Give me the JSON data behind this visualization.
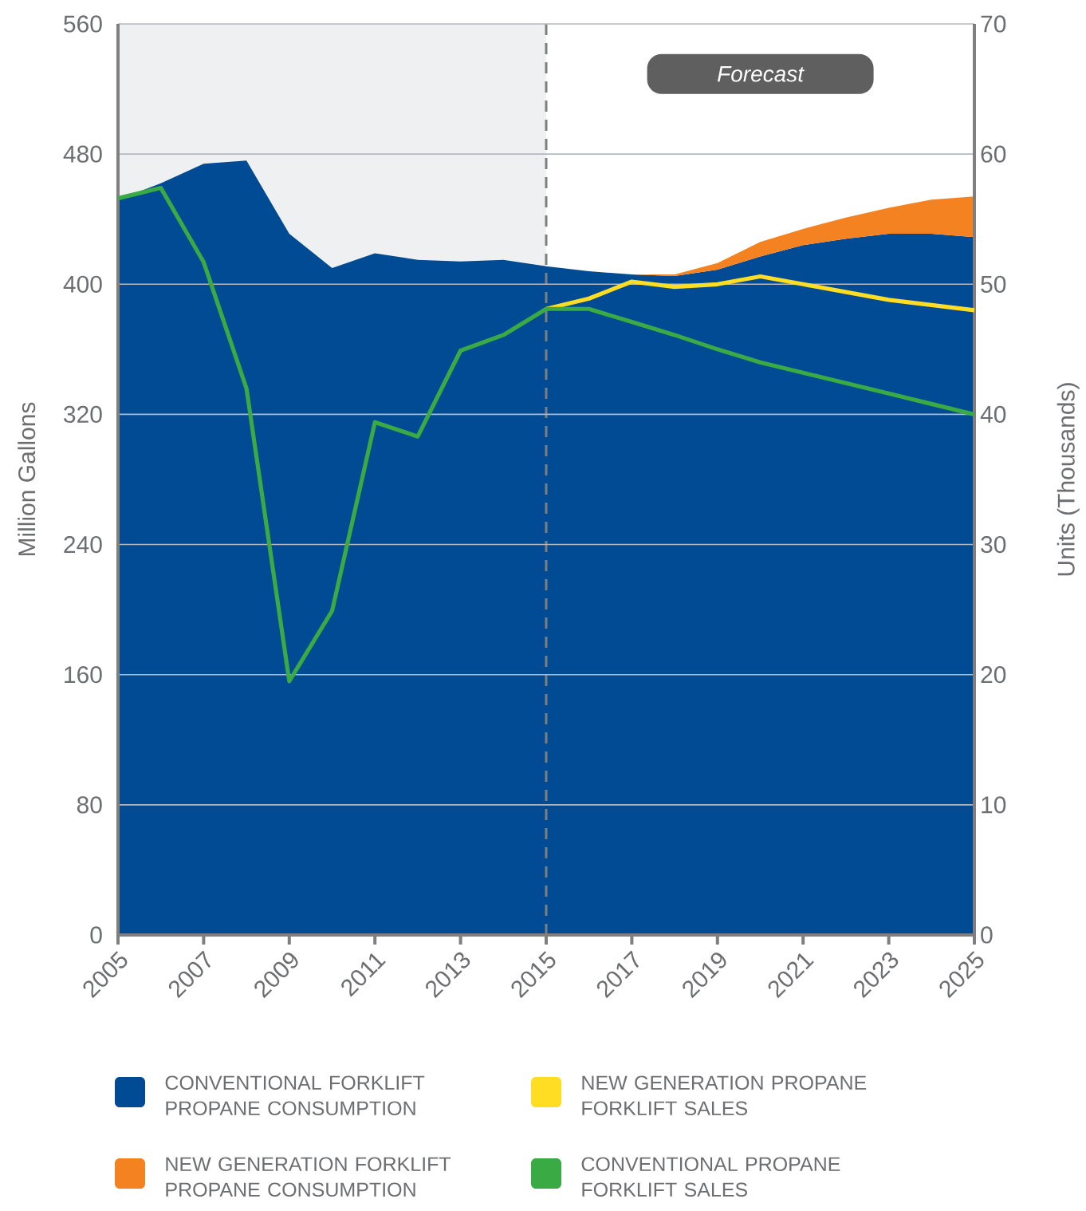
{
  "chart_data": {
    "type": "area",
    "stacked": true,
    "xlabel": null,
    "ylabel": "Million Gallons",
    "y2label": "Units (Thousands)",
    "x": [
      2005,
      2006,
      2007,
      2008,
      2009,
      2010,
      2011,
      2012,
      2013,
      2014,
      2015,
      2016,
      2017,
      2018,
      2019,
      2020,
      2021,
      2022,
      2023,
      2024,
      2025
    ],
    "series": [
      {
        "name": "CONVENTIONAL FORKLIFT PROPANE CONSUMPTION",
        "color": "#004b93",
        "values": [
          452,
          462,
          474,
          476,
          431,
          410,
          419,
          415,
          414,
          415,
          411,
          408,
          406,
          405,
          409,
          417,
          424,
          428,
          431,
          431,
          429
        ]
      },
      {
        "name": "NEW GENERATION FORKLIFT PROPANE CONSUMPTION",
        "color": "#f58220",
        "values": [
          null,
          null,
          null,
          null,
          null,
          null,
          null,
          null,
          null,
          null,
          null,
          null,
          0,
          1,
          4,
          9,
          10,
          13,
          16,
          21,
          25
        ]
      },
      {
        "name": "NEW GENERATION PROPANE FORKLIFT SALES",
        "type": "line",
        "axis": "y2",
        "color": "#ffdd22",
        "values": [
          null,
          null,
          null,
          null,
          null,
          null,
          null,
          null,
          null,
          null,
          48.1,
          48.9,
          50.2,
          49.8,
          50.0,
          50.6,
          50.0,
          49.4,
          48.8,
          48.4,
          48.0
        ]
      },
      {
        "name": "CONVENTIONAL PROPANE FORKLIFT SALES",
        "type": "line",
        "axis": "y2",
        "color": "#3aaa45",
        "values": [
          56.6,
          57.4,
          51.7,
          42.0,
          19.5,
          24.9,
          39.4,
          38.3,
          44.9,
          46.1,
          48.1,
          48.1,
          47.1,
          46.1,
          45.0,
          44.0,
          43.2,
          42.4,
          41.6,
          40.8,
          40.0
        ]
      }
    ],
    "xlim": [
      2005,
      2025
    ],
    "xticks": [
      2005,
      2007,
      2009,
      2011,
      2013,
      2015,
      2017,
      2019,
      2021,
      2023,
      2025
    ],
    "ylim": [
      0,
      560
    ],
    "yticks": [
      0,
      80,
      160,
      240,
      320,
      400,
      480,
      560
    ],
    "y2lim": [
      0,
      70
    ],
    "y2ticks": [
      0,
      10,
      20,
      30,
      40,
      50,
      60,
      70
    ],
    "bands": [
      {
        "axis": "x",
        "from": 2005,
        "to": 2015,
        "color": "#eff0f2"
      }
    ],
    "ref_lines": [
      {
        "axis": "x",
        "value": 2015,
        "color": "#7f7f7f",
        "line_style": "dashed"
      }
    ],
    "annotations": [
      "Forecast"
    ],
    "grid": "y",
    "legend": "bottom"
  }
}
